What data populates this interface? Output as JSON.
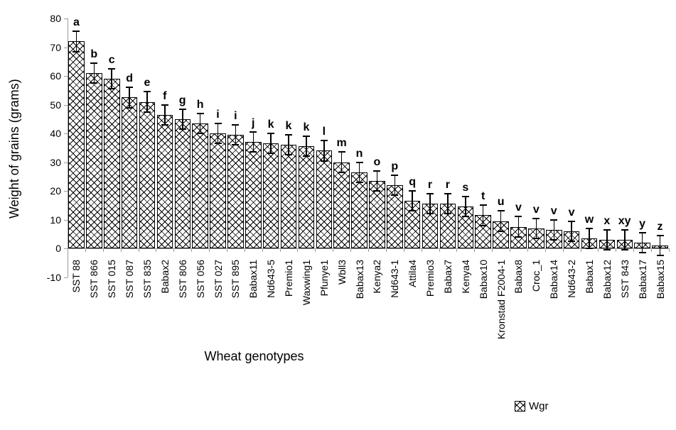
{
  "chart_data": {
    "type": "bar",
    "title": "",
    "xlabel": "Wheat genotypes",
    "ylabel": "Weight of grains (grams)",
    "ylim": [
      -10,
      80
    ],
    "yticks": [
      80,
      70,
      60,
      50,
      40,
      30,
      20,
      10,
      0,
      -10
    ],
    "grid": false,
    "legend": {
      "label": "Wgr",
      "position": "bottom-right",
      "marker": "hatched-square"
    },
    "bar_style": {
      "fill": "diagonal-crosshatch",
      "stroke": "#000000",
      "background": "#ffffff"
    },
    "error_bar_plus_minus": 3.5,
    "categories": [
      "SST 88",
      "SST 866",
      "SST 015",
      "SST 087",
      "SST 835",
      "Babax2",
      "SST 806",
      "SST 056",
      "SST 027",
      "SST 895",
      "Babax11",
      "Nd643-5",
      "Premio1",
      "Waxwing1",
      "Pfunye1",
      "Wbll3",
      "Babax13",
      "Kenya2",
      "Nd643-1",
      "Attila4",
      "Premio3",
      "Babax7",
      "Kenya4",
      "Babax10",
      "Kronstad F2004-1",
      "Babax8",
      "Croc_1",
      "Babax14",
      "Nd643-2",
      "Babax1",
      "Babax12",
      "SST 843",
      "Babax17",
      "Babax15"
    ],
    "values": [
      72,
      61,
      59,
      52.5,
      51,
      46.5,
      45,
      43.5,
      40,
      39.5,
      37,
      36.5,
      36,
      35.5,
      34,
      30,
      26.5,
      23.5,
      22,
      16.5,
      15.5,
      15.5,
      14.5,
      11.5,
      9.5,
      7.5,
      7,
      6.5,
      6,
      3.5,
      3,
      3,
      2,
      1
    ],
    "significance_letters": [
      "a",
      "b",
      "c",
      "d",
      "e",
      "f",
      "g",
      "h",
      "i",
      "i",
      "j",
      "k",
      "k",
      "k",
      "l",
      "m",
      "n",
      "o",
      "p",
      "q",
      "r",
      "r",
      "s",
      "t",
      "u",
      "v",
      "v",
      "v",
      "v",
      "w",
      "x",
      "xy",
      "y",
      "z"
    ]
  },
  "colors": {
    "axis": "#9b9b9b",
    "text": "#000000",
    "background": "#ffffff",
    "bar_stroke": "#000000"
  }
}
